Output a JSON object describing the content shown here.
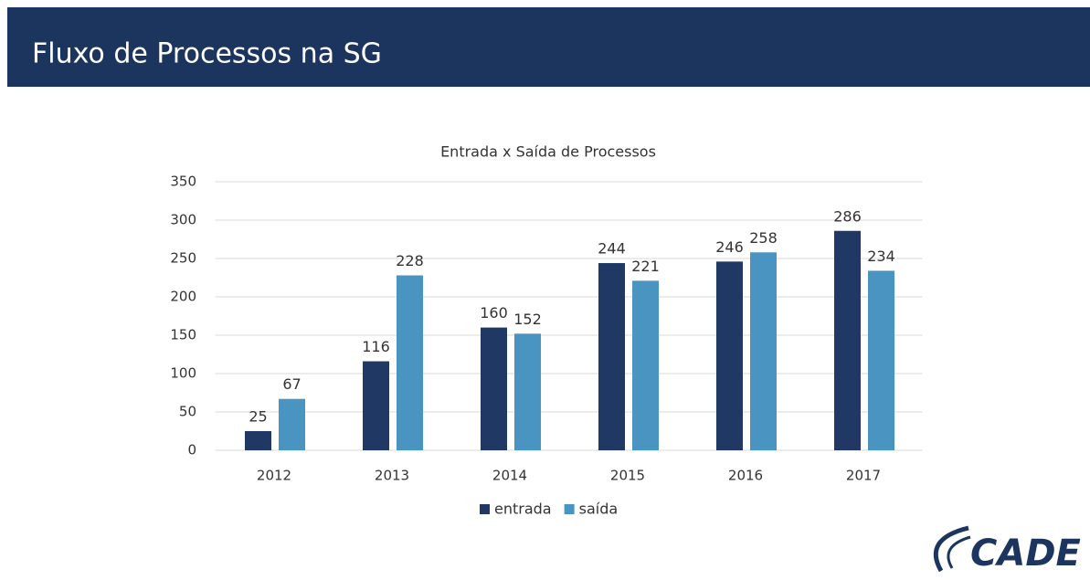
{
  "header": {
    "title": "Fluxo de Processos na SG"
  },
  "chart_data": {
    "type": "bar",
    "title": "Entrada x Saída de Processos",
    "categories": [
      "2012",
      "2013",
      "2014",
      "2015",
      "2016",
      "2017"
    ],
    "series": [
      {
        "name": "entrada",
        "color": "#1f3864",
        "values": [
          25,
          116,
          160,
          244,
          246,
          286
        ]
      },
      {
        "name": "saída",
        "color": "#4a94c2",
        "values": [
          67,
          228,
          152,
          221,
          258,
          234
        ]
      }
    ],
    "ylim": [
      0,
      350
    ],
    "yticks": [
      0,
      50,
      100,
      150,
      200,
      250,
      300,
      350
    ],
    "grid": true,
    "legend": "bottom"
  },
  "logo": {
    "text": "CADE"
  }
}
